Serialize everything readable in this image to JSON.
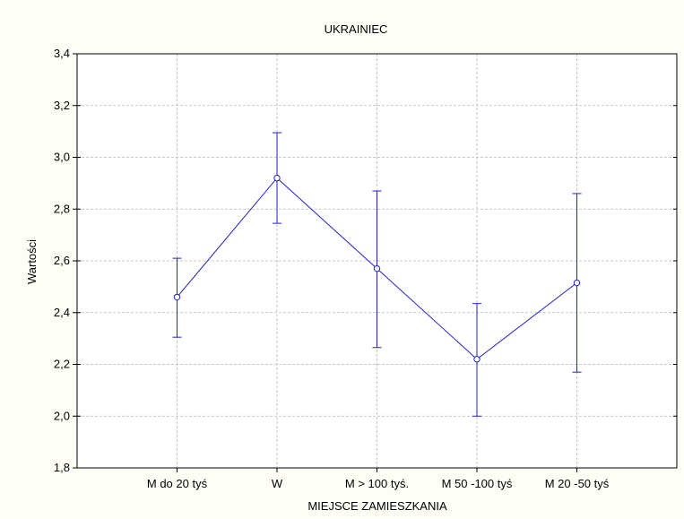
{
  "chart_data": {
    "type": "line",
    "title": "UKRAINIEC",
    "xlabel": "MIEJSCE ZAMIESZKANIA",
    "ylabel": "Wartości",
    "categories": [
      "M do 20 tyś",
      "W",
      "M > 100 tyś.",
      "M 50 -100 tyś",
      "M 20 -50 tyś"
    ],
    "y_ticks": [
      "1,8",
      "2,0",
      "2,2",
      "2,4",
      "2,6",
      "2,8",
      "3,0",
      "3,2",
      "3,4"
    ],
    "ylim": [
      1.8,
      3.4
    ],
    "grid": true,
    "series": [
      {
        "values": [
          2.46,
          2.92,
          2.57,
          2.22,
          2.515
        ],
        "error_low": [
          2.305,
          2.745,
          2.265,
          2.0,
          2.17
        ],
        "error_high": [
          2.61,
          3.095,
          2.87,
          2.435,
          2.86
        ],
        "color": "#2222cc"
      }
    ]
  }
}
